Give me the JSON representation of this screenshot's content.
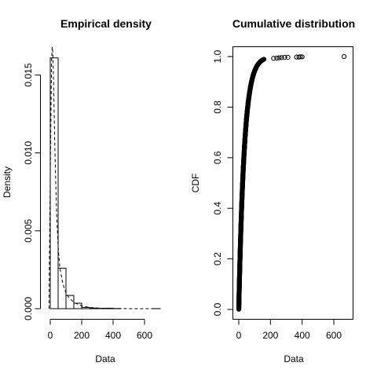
{
  "chart_data": [
    {
      "type": "bar",
      "title": "Empirical density",
      "xlabel": "Data",
      "ylabel": "Density",
      "xlim": [
        0,
        700
      ],
      "ylim": [
        0,
        0.016
      ],
      "xticks": [
        0,
        200,
        400,
        600
      ],
      "yticks": [
        0.0,
        0.005,
        0.01,
        0.015
      ],
      "ytick_labels": [
        "0.000",
        "0.005",
        "0.010",
        "0.015"
      ],
      "bins": [
        {
          "x0": 0,
          "x1": 50,
          "value": 0.0161
        },
        {
          "x0": 50,
          "x1": 100,
          "value": 0.0026
        },
        {
          "x0": 100,
          "x1": 150,
          "value": 0.00085
        },
        {
          "x0": 150,
          "x1": 200,
          "value": 0.00035
        },
        {
          "x0": 200,
          "x1": 250,
          "value": 8e-05
        },
        {
          "x0": 250,
          "x1": 300,
          "value": 4e-05
        },
        {
          "x0": 300,
          "x1": 350,
          "value": 2e-05
        },
        {
          "x0": 350,
          "x1": 400,
          "value": 3e-05
        },
        {
          "x0": 400,
          "x1": 450,
          "value": 1e-05
        },
        {
          "x0": 450,
          "x1": 500,
          "value": 0.0
        },
        {
          "x0": 500,
          "x1": 550,
          "value": 0.0
        },
        {
          "x0": 550,
          "x1": 600,
          "value": 0.0
        },
        {
          "x0": 600,
          "x1": 650,
          "value": 0.0
        },
        {
          "x0": 650,
          "x1": 700,
          "value": 5e-06
        }
      ],
      "density_curve": {
        "x": [
          -8,
          0,
          8,
          12,
          16,
          20,
          25,
          30,
          40,
          50,
          60,
          80,
          100,
          120,
          150,
          200,
          250,
          300,
          400,
          500,
          600,
          700
        ],
        "y": [
          0.0,
          0.0085,
          0.0158,
          0.0168,
          0.0165,
          0.015,
          0.0125,
          0.01,
          0.0062,
          0.004,
          0.0027,
          0.0016,
          0.001,
          0.0007,
          0.0004,
          0.00018,
          8e-05,
          4e-05,
          1e-05,
          3e-06,
          1e-06,
          0.0
        ]
      }
    },
    {
      "type": "scatter",
      "title": "Cumulative distribution",
      "xlabel": "Data",
      "ylabel": "CDF",
      "xlim": [
        -15,
        715
      ],
      "ylim": [
        -0.04,
        1.04
      ],
      "xticks": [
        0,
        200,
        400,
        600
      ],
      "yticks": [
        0.0,
        0.2,
        0.4,
        0.6,
        0.8,
        1.0
      ],
      "ytick_labels": [
        "0.0",
        "0.2",
        "0.4",
        "0.6",
        "0.8",
        "1.0"
      ],
      "cdf_shape": {
        "scale": 35
      },
      "tail_points": [
        {
          "x": 220,
          "y": 0.993
        },
        {
          "x": 240,
          "y": 0.994
        },
        {
          "x": 255,
          "y": 0.995
        },
        {
          "x": 270,
          "y": 0.996
        },
        {
          "x": 290,
          "y": 0.997
        },
        {
          "x": 310,
          "y": 0.997
        },
        {
          "x": 365,
          "y": 0.998
        },
        {
          "x": 380,
          "y": 0.998
        },
        {
          "x": 390,
          "y": 0.999
        },
        {
          "x": 400,
          "y": 0.999
        },
        {
          "x": 665,
          "y": 1.0
        }
      ]
    }
  ]
}
